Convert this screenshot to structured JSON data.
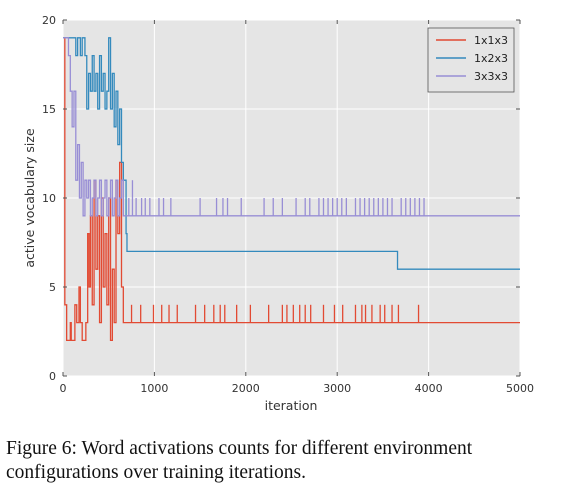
{
  "chart_data": {
    "type": "line",
    "title": "",
    "xlabel": "iteration",
    "ylabel": "active vocabulary size",
    "xlim": [
      0,
      5000
    ],
    "ylim": [
      0,
      20
    ],
    "xticks": [
      0,
      1000,
      2000,
      3000,
      4000,
      5000
    ],
    "yticks": [
      0,
      5,
      10,
      15,
      20
    ],
    "grid": true,
    "legend_position": "top-right",
    "series": [
      {
        "name": "1x1x3",
        "color": "#e24a33",
        "points": [
          [
            0,
            19
          ],
          [
            20,
            4
          ],
          [
            40,
            2
          ],
          [
            60,
            2
          ],
          [
            80,
            3
          ],
          [
            90,
            2
          ],
          [
            110,
            2
          ],
          [
            130,
            4
          ],
          [
            150,
            3
          ],
          [
            160,
            3
          ],
          [
            175,
            5
          ],
          [
            190,
            3
          ],
          [
            210,
            2
          ],
          [
            230,
            2
          ],
          [
            250,
            3
          ],
          [
            270,
            8
          ],
          [
            285,
            5
          ],
          [
            300,
            9
          ],
          [
            320,
            4
          ],
          [
            340,
            11
          ],
          [
            360,
            6
          ],
          [
            380,
            9
          ],
          [
            400,
            3
          ],
          [
            420,
            10
          ],
          [
            440,
            5
          ],
          [
            460,
            8
          ],
          [
            480,
            4
          ],
          [
            500,
            10
          ],
          [
            520,
            2
          ],
          [
            540,
            6
          ],
          [
            560,
            3
          ],
          [
            580,
            11
          ],
          [
            600,
            8
          ],
          [
            620,
            12
          ],
          [
            640,
            5
          ],
          [
            660,
            3
          ],
          [
            700,
            3
          ],
          [
            3900,
            3
          ],
          [
            5000,
            3
          ]
        ],
        "spikes": [
          [
            750,
            4
          ],
          [
            850,
            4
          ],
          [
            990,
            4
          ],
          [
            1080,
            4
          ],
          [
            1160,
            4
          ],
          [
            1250,
            4
          ],
          [
            1450,
            4
          ],
          [
            1550,
            4
          ],
          [
            1650,
            4
          ],
          [
            1720,
            4
          ],
          [
            1770,
            4
          ],
          [
            1900,
            4
          ],
          [
            2050,
            4
          ],
          [
            2250,
            4
          ],
          [
            2400,
            4
          ],
          [
            2450,
            4
          ],
          [
            2520,
            4
          ],
          [
            2590,
            4
          ],
          [
            2650,
            4
          ],
          [
            2710,
            4
          ],
          [
            2850,
            4
          ],
          [
            2970,
            4
          ],
          [
            3060,
            4
          ],
          [
            3200,
            4
          ],
          [
            3270,
            4
          ],
          [
            3310,
            4
          ],
          [
            3380,
            4
          ],
          [
            3470,
            4
          ],
          [
            3520,
            4
          ],
          [
            3600,
            4
          ],
          [
            3670,
            4
          ],
          [
            3890,
            4
          ]
        ]
      },
      {
        "name": "1x2x3",
        "color": "#348abd",
        "points": [
          [
            0,
            19
          ],
          [
            120,
            19
          ],
          [
            140,
            18
          ],
          [
            160,
            19
          ],
          [
            190,
            18
          ],
          [
            210,
            19
          ],
          [
            240,
            18
          ],
          [
            260,
            15
          ],
          [
            280,
            17
          ],
          [
            300,
            16
          ],
          [
            320,
            18
          ],
          [
            340,
            16
          ],
          [
            360,
            17
          ],
          [
            380,
            15
          ],
          [
            400,
            18
          ],
          [
            420,
            16
          ],
          [
            440,
            17
          ],
          [
            460,
            15
          ],
          [
            480,
            16
          ],
          [
            500,
            19
          ],
          [
            520,
            15
          ],
          [
            540,
            17
          ],
          [
            560,
            14
          ],
          [
            580,
            16
          ],
          [
            600,
            13
          ],
          [
            620,
            15
          ],
          [
            640,
            12
          ],
          [
            660,
            11
          ],
          [
            690,
            8
          ],
          [
            700,
            7
          ],
          [
            720,
            7
          ],
          [
            3630,
            7
          ],
          [
            3660,
            6
          ],
          [
            5000,
            6
          ]
        ],
        "spikes": [
          [
            720,
            6
          ],
          [
            2260,
            6
          ],
          [
            2800,
            6
          ],
          [
            2850,
            6
          ],
          [
            2900,
            6
          ],
          [
            3150,
            6
          ],
          [
            3330,
            6
          ],
          [
            3370,
            6
          ],
          [
            3420,
            6
          ],
          [
            3460,
            6
          ],
          [
            3500,
            6
          ],
          [
            3540,
            6
          ],
          [
            3580,
            6
          ]
        ]
      },
      {
        "name": "3x3x3",
        "color": "#988ed5",
        "points": [
          [
            0,
            19
          ],
          [
            30,
            19
          ],
          [
            60,
            18
          ],
          [
            80,
            16
          ],
          [
            100,
            14
          ],
          [
            120,
            16
          ],
          [
            140,
            11
          ],
          [
            160,
            13
          ],
          [
            180,
            10
          ],
          [
            200,
            12
          ],
          [
            220,
            9
          ],
          [
            240,
            11
          ],
          [
            260,
            10
          ],
          [
            280,
            11
          ],
          [
            300,
            9
          ],
          [
            320,
            10
          ],
          [
            340,
            11
          ],
          [
            360,
            9
          ],
          [
            380,
            10
          ],
          [
            400,
            11
          ],
          [
            420,
            9
          ],
          [
            440,
            10
          ],
          [
            460,
            11
          ],
          [
            480,
            9
          ],
          [
            500,
            10
          ],
          [
            520,
            11
          ],
          [
            540,
            9
          ],
          [
            560,
            10
          ],
          [
            580,
            11
          ],
          [
            600,
            9
          ],
          [
            620,
            10
          ],
          [
            640,
            11
          ],
          [
            660,
            9
          ],
          [
            700,
            9
          ],
          [
            5000,
            9
          ]
        ],
        "spikes": [
          [
            720,
            10
          ],
          [
            760,
            11
          ],
          [
            800,
            10
          ],
          [
            860,
            10
          ],
          [
            900,
            10
          ],
          [
            950,
            10
          ],
          [
            1050,
            10
          ],
          [
            1100,
            10
          ],
          [
            1180,
            10
          ],
          [
            1500,
            10
          ],
          [
            1680,
            10
          ],
          [
            1750,
            10
          ],
          [
            1800,
            10
          ],
          [
            1950,
            10
          ],
          [
            2200,
            10
          ],
          [
            2300,
            10
          ],
          [
            2400,
            10
          ],
          [
            2550,
            10
          ],
          [
            2650,
            10
          ],
          [
            2700,
            10
          ],
          [
            2800,
            10
          ],
          [
            2850,
            10
          ],
          [
            2900,
            10
          ],
          [
            2950,
            10
          ],
          [
            3000,
            10
          ],
          [
            3050,
            10
          ],
          [
            3100,
            10
          ],
          [
            3200,
            10
          ],
          [
            3250,
            10
          ],
          [
            3300,
            10
          ],
          [
            3350,
            10
          ],
          [
            3400,
            10
          ],
          [
            3450,
            10
          ],
          [
            3500,
            10
          ],
          [
            3550,
            10
          ],
          [
            3600,
            10
          ],
          [
            3700,
            10
          ],
          [
            3750,
            10
          ],
          [
            3800,
            10
          ],
          [
            3850,
            10
          ],
          [
            3900,
            10
          ],
          [
            3950,
            10
          ]
        ]
      }
    ]
  },
  "caption": "Figure 6: Word activations counts for different environment configurations over training iterations."
}
